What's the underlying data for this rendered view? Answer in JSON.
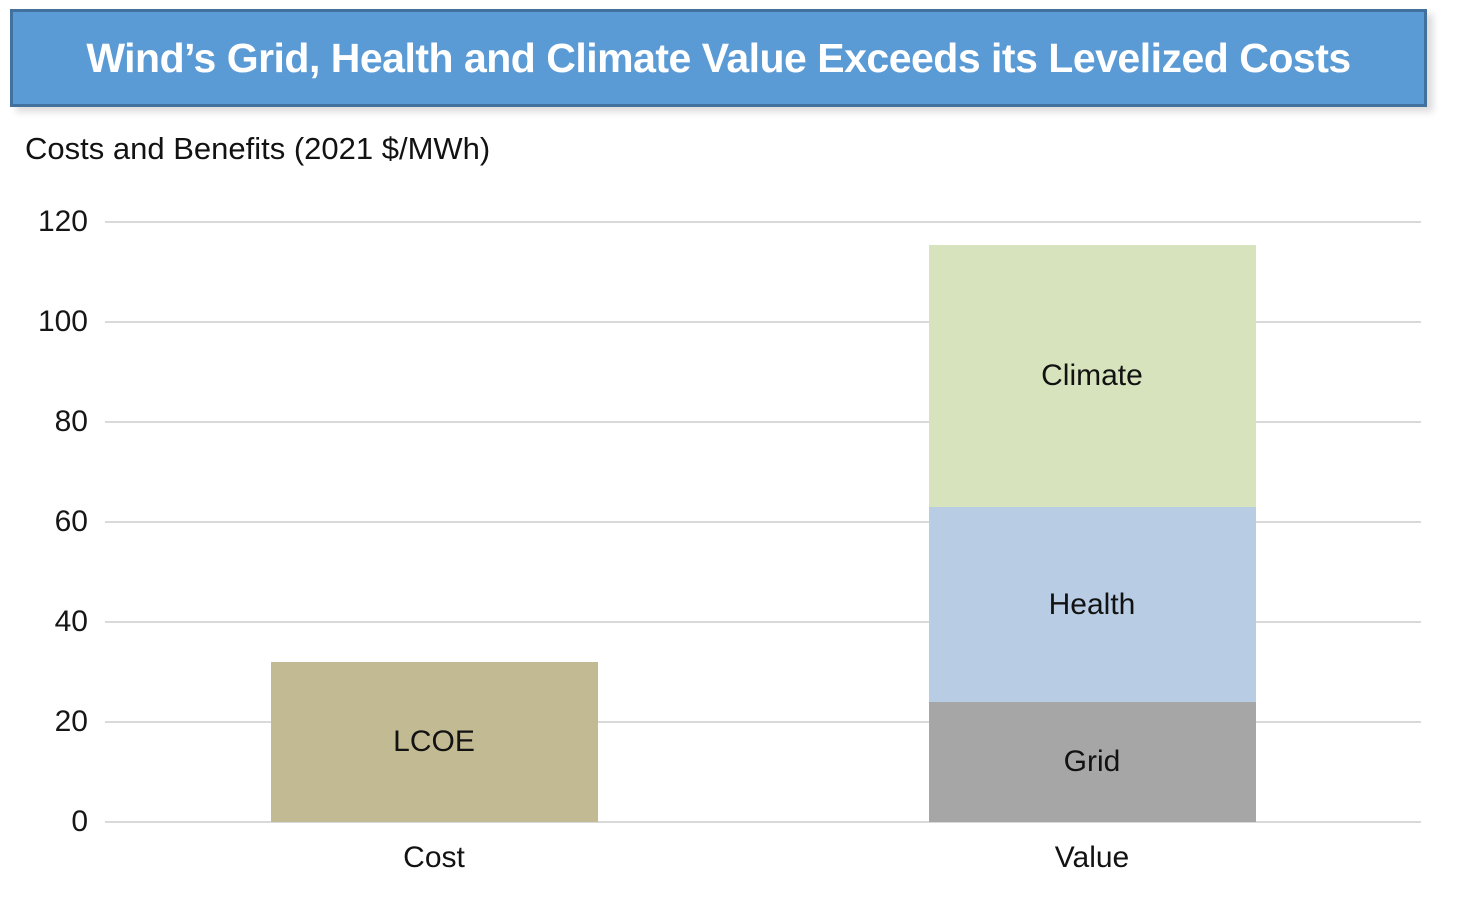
{
  "title": "Wind’s Grid, Health and Climate Value Exceeds its Levelized Costs",
  "subtitle": "Costs and Benefits (2021 $/MWh)",
  "colors": {
    "banner_fill": "#5b9bd5",
    "banner_border": "#41719c",
    "gridline": "#d9d9d9",
    "axis_text": "#161616",
    "background": "#ffffff"
  },
  "chart_data": {
    "type": "bar",
    "stacked": true,
    "title": "Wind’s Grid, Health and Climate Value Exceeds its Levelized Costs",
    "ylabel": "Costs and Benefits (2021 $/MWh)",
    "categories": [
      "Cost",
      "Value"
    ],
    "series": [
      {
        "name": "LCOE",
        "color": "#c2ba92",
        "values": [
          32,
          null
        ]
      },
      {
        "name": "Grid",
        "color": "#a6a6a6",
        "values": [
          null,
          24
        ]
      },
      {
        "name": "Health",
        "color": "#b8cce4",
        "values": [
          null,
          39
        ]
      },
      {
        "name": "Climate",
        "color": "#d7e3bd",
        "values": [
          null,
          52.5
        ]
      }
    ],
    "totals": {
      "Cost": 32,
      "Value": 115.5
    },
    "ylim": [
      0,
      120
    ],
    "yticks": [
      0,
      20,
      40,
      60,
      80,
      100,
      120
    ],
    "grid": true,
    "legend": "labels-inside-bars"
  }
}
